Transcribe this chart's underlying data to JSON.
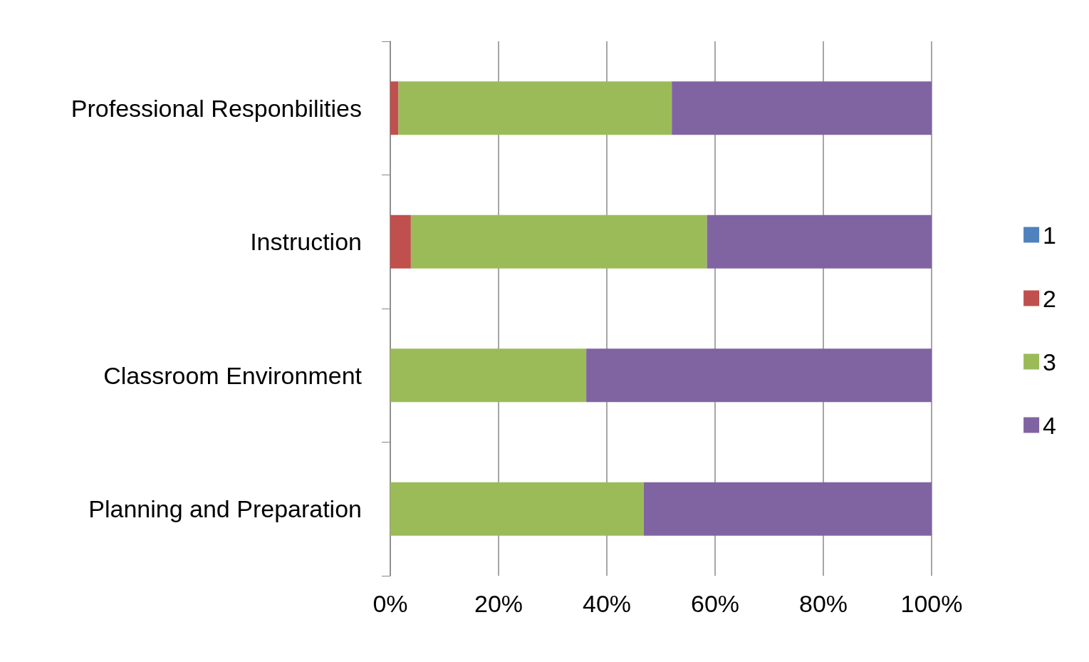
{
  "chart_data": {
    "type": "bar",
    "orientation": "horizontal",
    "stacked": true,
    "categories": [
      "Professional Responbilities",
      "Instruction",
      "Classroom Environment",
      "Planning and Preparation"
    ],
    "series": [
      {
        "name": "1",
        "color": "#4f81bd",
        "values": [
          0,
          0,
          0,
          0
        ]
      },
      {
        "name": "2",
        "color": "#c0504d",
        "values": [
          1.5,
          3.8,
          0,
          0
        ]
      },
      {
        "name": "3",
        "color": "#9bbb59",
        "values": [
          50.5,
          54.7,
          36.2,
          46.8
        ]
      },
      {
        "name": "4",
        "color": "#8064a2",
        "values": [
          48,
          41.5,
          63.8,
          53.2
        ]
      }
    ],
    "xlim": [
      0,
      100
    ],
    "xticks": [
      {
        "value": 0,
        "label": "0%"
      },
      {
        "value": 20,
        "label": "20%"
      },
      {
        "value": 40,
        "label": "40%"
      },
      {
        "value": 60,
        "label": "60%"
      },
      {
        "value": 80,
        "label": "80%"
      },
      {
        "value": 100,
        "label": "100%"
      }
    ],
    "grid": "x",
    "legend": "right"
  }
}
